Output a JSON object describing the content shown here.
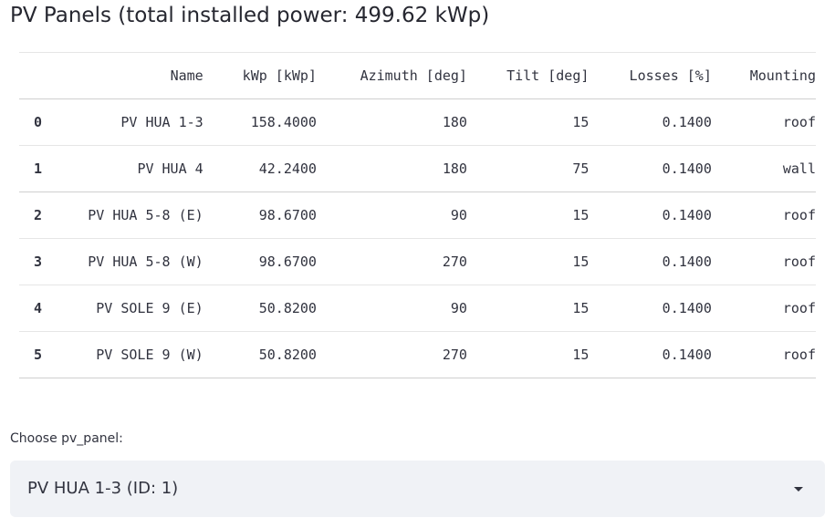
{
  "page": {
    "title": "PV Panels (total installed power: 499.62 kWp)"
  },
  "table": {
    "columns": [
      "",
      "Name",
      "kWp [kWp]",
      "Azimuth [deg]",
      "Tilt [deg]",
      "Losses [%]",
      "Mounting"
    ],
    "rows": [
      [
        "0",
        "PV HUA 1-3",
        "158.4000",
        "180",
        "15",
        "0.1400",
        "roof"
      ],
      [
        "1",
        "PV HUA 4",
        "42.2400",
        "180",
        "75",
        "0.1400",
        "wall"
      ],
      [
        "2",
        "PV HUA 5-8 (E)",
        "98.6700",
        "90",
        "15",
        "0.1400",
        "roof"
      ],
      [
        "3",
        "PV HUA 5-8 (W)",
        "98.6700",
        "270",
        "15",
        "0.1400",
        "roof"
      ],
      [
        "4",
        "PV SOLE 9 (E)",
        "50.8200",
        "90",
        "15",
        "0.1400",
        "roof"
      ],
      [
        "5",
        "PV SOLE 9 (W)",
        "50.8200",
        "270",
        "15",
        "0.1400",
        "roof"
      ]
    ]
  },
  "selector": {
    "label": "Choose pv_panel:",
    "value": "PV HUA 1-3 (ID: 1)",
    "icon": "chevron-down-icon"
  }
}
